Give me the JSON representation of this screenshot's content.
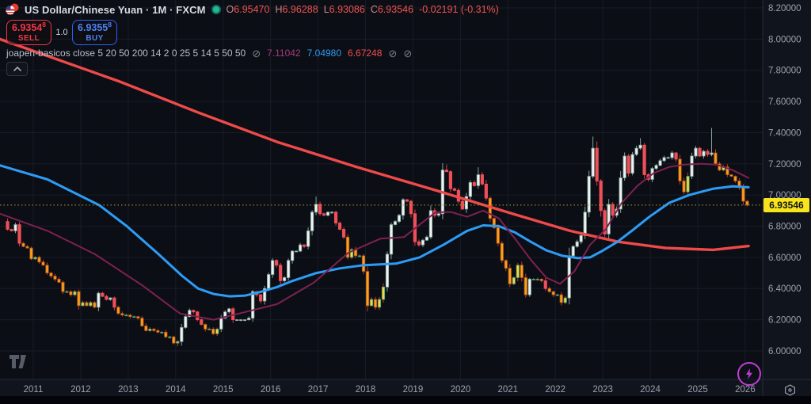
{
  "header": {
    "symbol_title": "US Dollar/Chinese Yuan · 1M · FXCM",
    "status_dot": "market-open",
    "ohlc": [
      {
        "k": "O",
        "v": "6.95470"
      },
      {
        "k": "H",
        "v": "6.96288"
      },
      {
        "k": "L",
        "v": "6.93086"
      },
      {
        "k": "C",
        "v": "6.93546"
      }
    ],
    "change": "-0.02191 (-0.31%)"
  },
  "trade": {
    "sell_price_base": "6.9354",
    "sell_price_sup": "8",
    "sell_label": "SELL",
    "spread": "1.0",
    "buy_price_base": "6.9355",
    "buy_price_sup": "8",
    "buy_label": "BUY"
  },
  "indicator": {
    "title": "joapen-basicos close 5 20 50 200 14 2 0 25 5 14 5 50 50",
    "hide_icon": "⊘",
    "values": [
      {
        "text": "7.11042",
        "color": "#a23b80"
      },
      {
        "text": "7.04980",
        "color": "#2d9cf4"
      },
      {
        "text": "6.67248",
        "color": "#ef4f4f"
      }
    ]
  },
  "colors": {
    "background": "#0c0e16",
    "grid": "#171c27",
    "axis_text": "#9ba1ad",
    "sell_red": "#f23645",
    "buy_blue": "#2962ff",
    "up_body": "#eef3f1",
    "up_border": "#8aa8a0",
    "down_body": "#ef4f57",
    "bear_up_body": "#ffd23f",
    "bear_up_border": "#35a07a",
    "bear_down_body": "#f9a11b",
    "bear_down_border": "#b2541c",
    "last_price_bg": "#f7e41c",
    "dotted_price_line": "#b5a32c",
    "lightning_purple": "#bf3dd3"
  },
  "axis": {
    "last_price_label": "6.93546"
  },
  "chart_data": {
    "type": "candlestick",
    "title": "US Dollar/Chinese Yuan, 1M, FXCM",
    "ylabel": "price",
    "ylim": [
      5.82,
      8.25
    ],
    "grid": true,
    "y_ticks": [
      {
        "value": 8.2,
        "label": "8.20000"
      },
      {
        "value": 8.0,
        "label": "8.00000"
      },
      {
        "value": 7.8,
        "label": "7.80000"
      },
      {
        "value": 7.6,
        "label": "7.60000"
      },
      {
        "value": 7.4,
        "label": "7.40000"
      },
      {
        "value": 7.2,
        "label": "7.20000"
      },
      {
        "value": 7.0,
        "label": "7.00000"
      },
      {
        "value": 6.8,
        "label": "6.80000"
      },
      {
        "value": 6.6,
        "label": "6.60000"
      },
      {
        "value": 6.4,
        "label": "6.40000"
      },
      {
        "value": 6.2,
        "label": "6.20000"
      },
      {
        "value": 6.0,
        "label": "6.00000"
      }
    ],
    "x_ticks": [
      2011,
      2012,
      2013,
      2014,
      2015,
      2016,
      2017,
      2018,
      2019,
      2020,
      2021,
      2022,
      2023,
      2024,
      2025,
      2026
    ],
    "last_price": 6.93546,
    "candles": {
      "interval": "1M",
      "start_year": 2010,
      "start_month": 5,
      "closes": [
        6.83,
        6.78,
        6.77,
        6.81,
        6.69,
        6.67,
        6.66,
        6.59,
        6.6,
        6.57,
        6.55,
        6.5,
        6.48,
        6.46,
        6.44,
        6.38,
        6.38,
        6.36,
        6.38,
        6.29,
        6.31,
        6.29,
        6.31,
        6.28,
        6.37,
        6.35,
        6.33,
        6.34,
        6.28,
        6.24,
        6.23,
        6.23,
        6.22,
        6.22,
        6.21,
        6.16,
        6.13,
        6.14,
        6.13,
        6.12,
        6.12,
        6.09,
        6.09,
        6.05,
        6.06,
        6.15,
        6.22,
        6.26,
        6.25,
        6.2,
        6.17,
        6.14,
        6.14,
        6.11,
        6.14,
        6.21,
        6.25,
        6.27,
        6.2,
        6.2,
        6.2,
        6.2,
        6.21,
        6.38,
        6.36,
        6.32,
        6.4,
        6.49,
        6.58,
        6.55,
        6.45,
        6.47,
        6.58,
        6.64,
        6.64,
        6.68,
        6.67,
        6.77,
        6.89,
        6.94,
        6.88,
        6.87,
        6.89,
        6.89,
        6.82,
        6.78,
        6.73,
        6.6,
        6.65,
        6.61,
        6.61,
        6.51,
        6.29,
        6.33,
        6.28,
        6.33,
        6.41,
        6.62,
        6.81,
        6.83,
        6.87,
        6.97,
        6.96,
        6.88,
        6.7,
        6.68,
        6.71,
        6.73,
        6.9,
        6.87,
        6.88,
        7.16,
        7.15,
        7.04,
        7.03,
        6.96,
        6.91,
        6.99,
        7.08,
        7.06,
        7.13,
        7.07,
        6.98,
        6.85,
        6.79,
        6.69,
        6.58,
        6.53,
        6.43,
        6.47,
        6.55,
        6.47,
        6.36,
        6.46,
        6.46,
        6.46,
        6.45,
        6.4,
        6.38,
        6.36,
        6.36,
        6.31,
        6.34,
        6.61,
        6.67,
        6.7,
        6.74,
        6.89,
        7.12,
        7.3,
        7.09,
        6.9,
        6.75,
        6.94,
        6.87,
        6.91,
        7.11,
        7.25,
        7.14,
        7.26,
        7.3,
        7.32,
        7.13,
        7.1,
        7.17,
        7.19,
        7.22,
        7.24,
        7.24,
        7.27,
        7.23,
        7.09,
        7.02,
        7.12,
        7.25,
        7.3,
        7.25,
        7.28,
        7.26,
        7.27,
        7.2,
        7.16,
        7.18,
        7.13,
        7.12,
        7.09,
        7.05,
        6.96,
        6.93546
      ],
      "extremes": {
        "2014-01": {
          "l": 6.03
        },
        "2016-12": {
          "h": 6.99
        },
        "2018-10": {
          "h": 6.98
        },
        "2019-09": {
          "h": 7.196
        },
        "2020-05": {
          "h": 7.178
        },
        "2022-10": {
          "h": 7.375
        },
        "2023-10": {
          "h": 7.365
        },
        "2025-04": {
          "h": 7.43
        }
      }
    },
    "overlays": [
      {
        "name": "ma-slow-red",
        "value_now": 6.67248,
        "color": "#ef4a4a",
        "width": 3.4,
        "points": [
          [
            2010.3,
            8.0
          ],
          [
            2012.8,
            7.73
          ],
          [
            2014.47,
            7.53
          ],
          [
            2016.14,
            7.34
          ],
          [
            2017.81,
            7.18
          ],
          [
            2019.48,
            7.03
          ],
          [
            2021.15,
            6.875
          ],
          [
            2022.31,
            6.77
          ],
          [
            2023.32,
            6.7
          ],
          [
            2024.32,
            6.66
          ],
          [
            2025.32,
            6.648
          ],
          [
            2026.07,
            6.6725
          ]
        ]
      },
      {
        "name": "ma-mid-blue",
        "value_now": 7.0498,
        "color": "#2d9cf4",
        "width": 3,
        "points": [
          [
            2010.3,
            7.19
          ],
          [
            2011.3,
            7.1
          ],
          [
            2012.39,
            6.935
          ],
          [
            2012.97,
            6.8
          ],
          [
            2013.64,
            6.62
          ],
          [
            2014.14,
            6.48
          ],
          [
            2014.47,
            6.4
          ],
          [
            2014.8,
            6.365
          ],
          [
            2015.14,
            6.35
          ],
          [
            2015.47,
            6.355
          ],
          [
            2015.81,
            6.38
          ],
          [
            2016.14,
            6.41
          ],
          [
            2016.47,
            6.45
          ],
          [
            2016.97,
            6.5
          ],
          [
            2017.47,
            6.53
          ],
          [
            2017.97,
            6.55
          ],
          [
            2018.64,
            6.56
          ],
          [
            2019.14,
            6.6
          ],
          [
            2019.64,
            6.68
          ],
          [
            2020.14,
            6.77
          ],
          [
            2020.48,
            6.805
          ],
          [
            2020.81,
            6.8
          ],
          [
            2021.15,
            6.76
          ],
          [
            2021.48,
            6.7
          ],
          [
            2021.81,
            6.645
          ],
          [
            2022.15,
            6.61
          ],
          [
            2022.48,
            6.595
          ],
          [
            2022.73,
            6.6
          ],
          [
            2022.98,
            6.64
          ],
          [
            2023.31,
            6.7
          ],
          [
            2023.65,
            6.78
          ],
          [
            2023.98,
            6.86
          ],
          [
            2024.4,
            6.95
          ],
          [
            2024.82,
            7.0
          ],
          [
            2025.32,
            7.04
          ],
          [
            2025.73,
            7.055
          ],
          [
            2026.07,
            7.0498
          ]
        ]
      },
      {
        "name": "ma-fast-purple",
        "value_now": 7.11042,
        "color": "#7e2150",
        "width": 2,
        "points": [
          [
            2010.3,
            6.88
          ],
          [
            2011.3,
            6.77
          ],
          [
            2012.3,
            6.62
          ],
          [
            2013.3,
            6.42
          ],
          [
            2014.09,
            6.24
          ],
          [
            2014.8,
            6.2
          ],
          [
            2015.47,
            6.25
          ],
          [
            2016.14,
            6.3
          ],
          [
            2016.92,
            6.44
          ],
          [
            2017.64,
            6.63
          ],
          [
            2018.31,
            6.72
          ],
          [
            2018.81,
            6.73
          ],
          [
            2019.14,
            6.81
          ],
          [
            2019.48,
            6.89
          ],
          [
            2019.81,
            6.89
          ],
          [
            2020.14,
            6.86
          ],
          [
            2020.48,
            6.9
          ],
          [
            2020.81,
            6.85
          ],
          [
            2021.15,
            6.72
          ],
          [
            2021.48,
            6.585
          ],
          [
            2021.81,
            6.47
          ],
          [
            2022.1,
            6.43
          ],
          [
            2022.4,
            6.51
          ],
          [
            2022.73,
            6.68
          ],
          [
            2023.06,
            6.78
          ],
          [
            2023.4,
            6.95
          ],
          [
            2023.73,
            7.06
          ],
          [
            2024.07,
            7.14
          ],
          [
            2024.4,
            7.18
          ],
          [
            2024.73,
            7.195
          ],
          [
            2025.07,
            7.2
          ],
          [
            2025.4,
            7.195
          ],
          [
            2025.73,
            7.16
          ],
          [
            2026.07,
            7.11
          ]
        ]
      }
    ]
  }
}
